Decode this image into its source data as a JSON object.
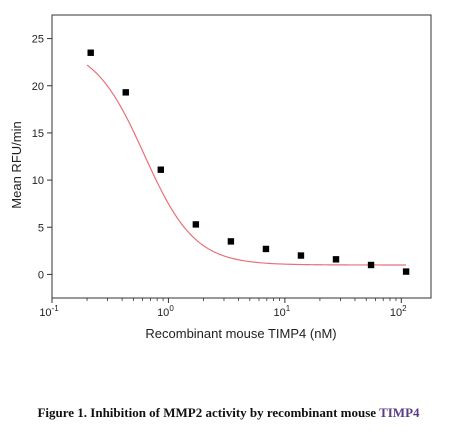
{
  "caption": {
    "text": "Figure 1. Inhibition of MMP2 activity by recombinant mouse ",
    "accent": "TIMP4",
    "accent_color": "#5a3c86"
  },
  "chart_data": {
    "type": "scatter",
    "xlabel": "Recombinant mouse TIMP4 (nM)",
    "ylabel": "Mean RFU/min",
    "xscale": "log",
    "xlim": [
      0.1,
      180
    ],
    "ylim": [
      -2.5,
      27.5
    ],
    "x_ticks": [
      {
        "value": 0.1,
        "base": "10",
        "exp": "-1"
      },
      {
        "value": 1,
        "base": "10",
        "exp": "0"
      },
      {
        "value": 10,
        "base": "10",
        "exp": "1"
      },
      {
        "value": 100,
        "base": "10",
        "exp": "2"
      }
    ],
    "y_ticks": [
      0,
      5,
      10,
      15,
      20,
      25
    ],
    "grid": false,
    "points": {
      "x": [
        0.215,
        0.43,
        0.86,
        1.72,
        3.44,
        6.88,
        13.75,
        27.5,
        55,
        110
      ],
      "y": [
        23.5,
        19.3,
        11.1,
        5.3,
        3.5,
        2.7,
        2.0,
        1.6,
        1.0,
        0.3
      ],
      "color": "#000000"
    },
    "fit_curve": {
      "model": "four-parameter logistic",
      "top": 24.4,
      "bottom": 1.0,
      "ec50": 0.62,
      "hill": 2.0,
      "color": "#e8707a"
    }
  }
}
